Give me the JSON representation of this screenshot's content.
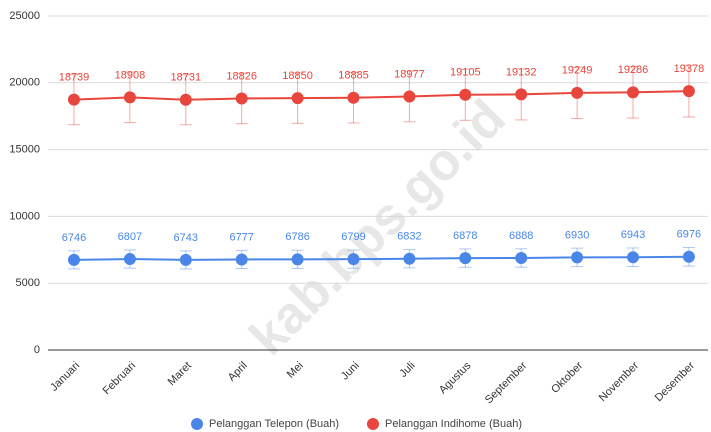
{
  "chart_data": {
    "type": "line",
    "categories": [
      "Januari",
      "Februari",
      "Maret",
      "April",
      "Mei",
      "Juni",
      "Juli",
      "Agustus",
      "September",
      "Oktober",
      "November",
      "Desember"
    ],
    "series": [
      {
        "name": "Pelanggan Telepon (Buah)",
        "color": "#4a86e8",
        "values": [
          6746,
          6807,
          6743,
          6777,
          6786,
          6799,
          6832,
          6878,
          6888,
          6930,
          6943,
          6976
        ],
        "errors": [
          675,
          681,
          674,
          678,
          679,
          680,
          683,
          688,
          689,
          693,
          694,
          698
        ]
      },
      {
        "name": "Pelanggan Indihome (Buah)",
        "color": "#e8453c",
        "values": [
          18739,
          18908,
          18731,
          18826,
          18850,
          18885,
          18977,
          19105,
          19132,
          19249,
          19286,
          19378
        ],
        "errors": [
          1874,
          1891,
          1873,
          1883,
          1885,
          1889,
          1898,
          1911,
          1913,
          1925,
          1929,
          1938
        ]
      }
    ],
    "ylim": [
      0,
      25000
    ],
    "yticks": [
      0,
      5000,
      10000,
      15000,
      20000,
      25000
    ],
    "grid": true,
    "legend": "bottom",
    "watermark": "kab.bps.go.id"
  }
}
